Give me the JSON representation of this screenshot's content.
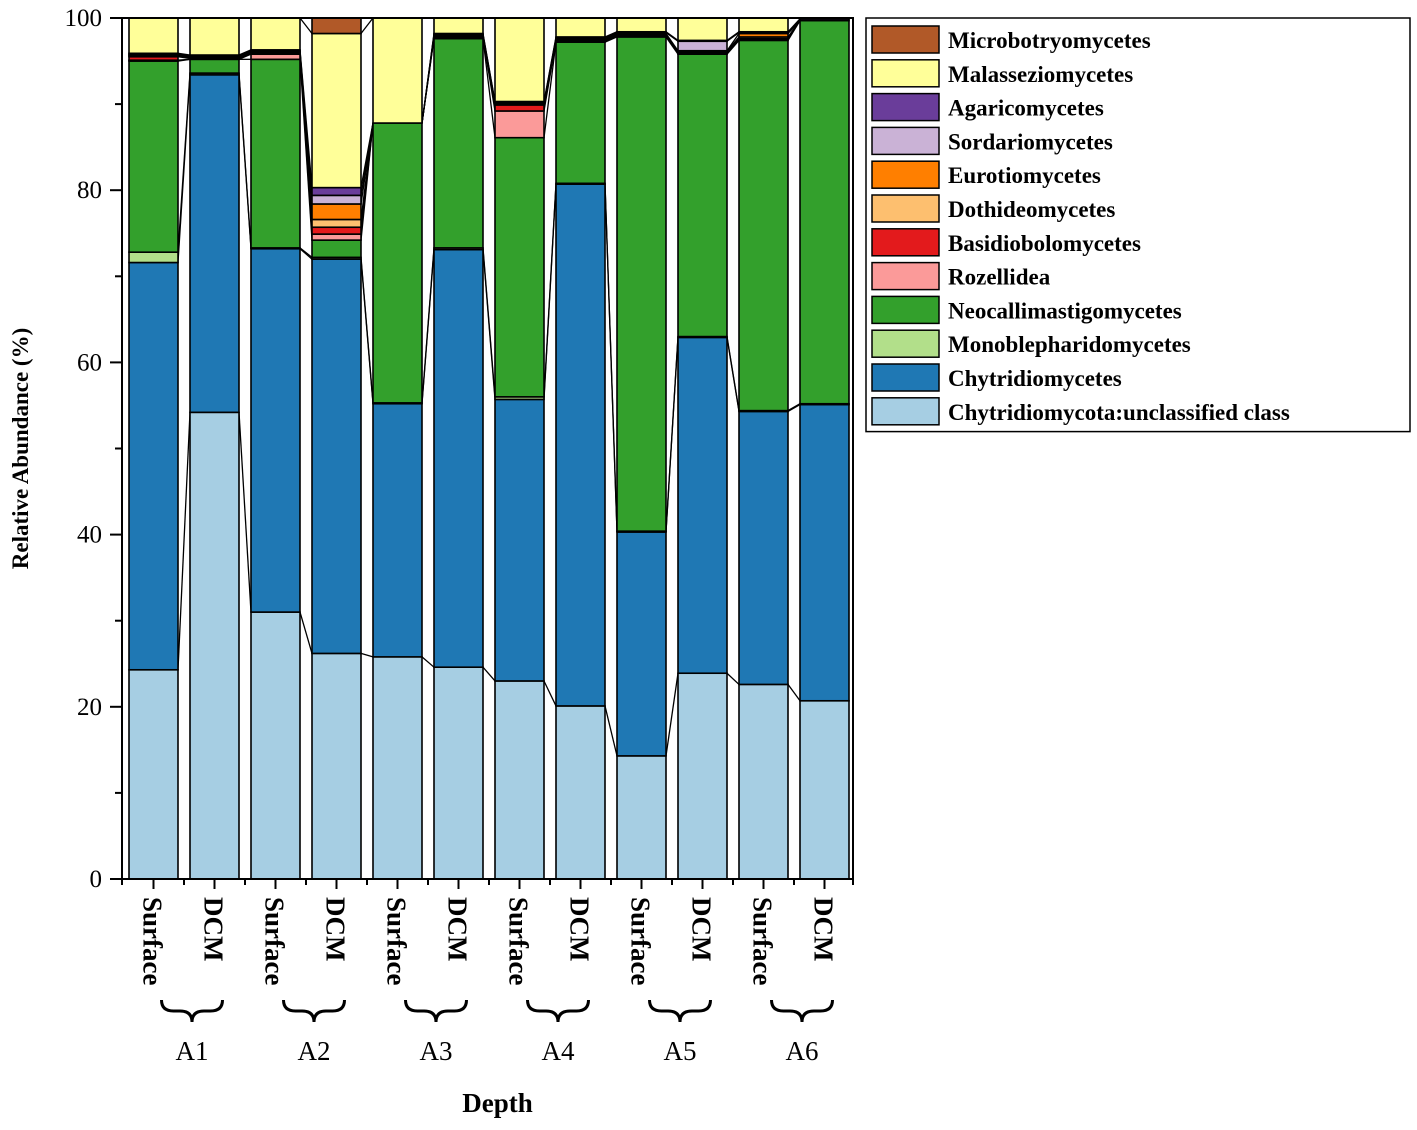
{
  "chart_data": {
    "type": "bar",
    "stacked": true,
    "xlabel": "Depth",
    "ylabel": "Relative Abundance (%)",
    "ylim": [
      0,
      100
    ],
    "yticks": [
      0,
      20,
      40,
      60,
      80,
      100
    ],
    "categories": [
      "Surface",
      "DCM",
      "Surface",
      "DCM",
      "Surface",
      "DCM",
      "Surface",
      "DCM",
      "Surface",
      "DCM",
      "Surface",
      "DCM"
    ],
    "groups": [
      "A1",
      "A2",
      "A3",
      "A4",
      "A5",
      "A6"
    ],
    "series": [
      {
        "name": "Chytridiomycota:unclassified class",
        "color": "#a6cee3",
        "values": [
          24.3,
          54.2,
          31.0,
          26.2,
          25.8,
          24.6,
          23.0,
          20.1,
          14.3,
          23.9,
          22.6,
          20.7
        ]
      },
      {
        "name": "Chytridiomycetes",
        "color": "#1f78b4",
        "values": [
          47.3,
          39.2,
          42.2,
          45.8,
          29.4,
          48.5,
          32.7,
          60.6,
          26.0,
          39.0,
          31.7,
          34.4
        ]
      },
      {
        "name": "Monoblepharidomycetes",
        "color": "#b2df8a",
        "values": [
          1.2,
          0.2,
          0.1,
          0.2,
          0.1,
          0.2,
          0.3,
          0.1,
          0.1,
          0.1,
          0.1,
          0.1
        ]
      },
      {
        "name": "Neocallimastigomycetes",
        "color": "#33a02c",
        "values": [
          22.2,
          1.6,
          21.9,
          2.0,
          32.5,
          24.3,
          30.1,
          16.4,
          57.4,
          32.8,
          43.0,
          44.5
        ]
      },
      {
        "name": "Rozellidea",
        "color": "#fb9a99",
        "values": [
          0.1,
          0.0,
          0.6,
          0.7,
          0.0,
          0.1,
          3.1,
          0.1,
          0.1,
          0.1,
          0.1,
          0.0
        ]
      },
      {
        "name": "Basidiobolomycetes",
        "color": "#e31a1c",
        "values": [
          0.4,
          0.1,
          0.1,
          0.8,
          0.0,
          0.1,
          0.7,
          0.1,
          0.1,
          0.1,
          0.1,
          0.0
        ]
      },
      {
        "name": "Dothideomycetes",
        "color": "#fdbf6f",
        "values": [
          0.1,
          0.1,
          0.1,
          0.9,
          0.0,
          0.1,
          0.1,
          0.1,
          0.1,
          0.1,
          0.2,
          0.0
        ]
      },
      {
        "name": "Eurotiomycetes",
        "color": "#ff7f00",
        "values": [
          0.1,
          0.1,
          0.1,
          1.8,
          0.0,
          0.1,
          0.1,
          0.1,
          0.1,
          0.1,
          0.4,
          0.0
        ]
      },
      {
        "name": "Sordariomycetes",
        "color": "#cab2d6",
        "values": [
          0.1,
          0.1,
          0.1,
          1.0,
          0.0,
          0.1,
          0.1,
          0.1,
          0.1,
          1.1,
          0.1,
          0.0
        ]
      },
      {
        "name": "Agaricomycetes",
        "color": "#6a3d9a",
        "values": [
          0.1,
          0.1,
          0.1,
          0.9,
          0.0,
          0.1,
          0.1,
          0.1,
          0.1,
          0.1,
          0.1,
          0.2
        ]
      },
      {
        "name": "Malasseziomycetes",
        "color": "#ffff99",
        "values": [
          4.1,
          4.3,
          3.7,
          17.9,
          12.2,
          1.8,
          9.7,
          2.2,
          1.6,
          2.6,
          1.6,
          0.1
        ]
      },
      {
        "name": "Microbotryomycetes",
        "color": "#b15928",
        "values": [
          0.0,
          0.0,
          0.0,
          1.8,
          0.0,
          0.0,
          0.0,
          0.0,
          0.0,
          0.0,
          0.0,
          0.0
        ]
      }
    ],
    "legend_order": [
      "Microbotryomycetes",
      "Malasseziomycetes",
      "Agaricomycetes",
      "Sordariomycetes",
      "Eurotiomycetes",
      "Dothideomycetes",
      "Basidiobolomycetes",
      "Rozellidea",
      "Neocallimastigomycetes",
      "Monoblepharidomycetes",
      "Chytridiomycetes",
      "Chytridiomycota:unclassified class"
    ],
    "legend_position": "right",
    "grid": false
  }
}
